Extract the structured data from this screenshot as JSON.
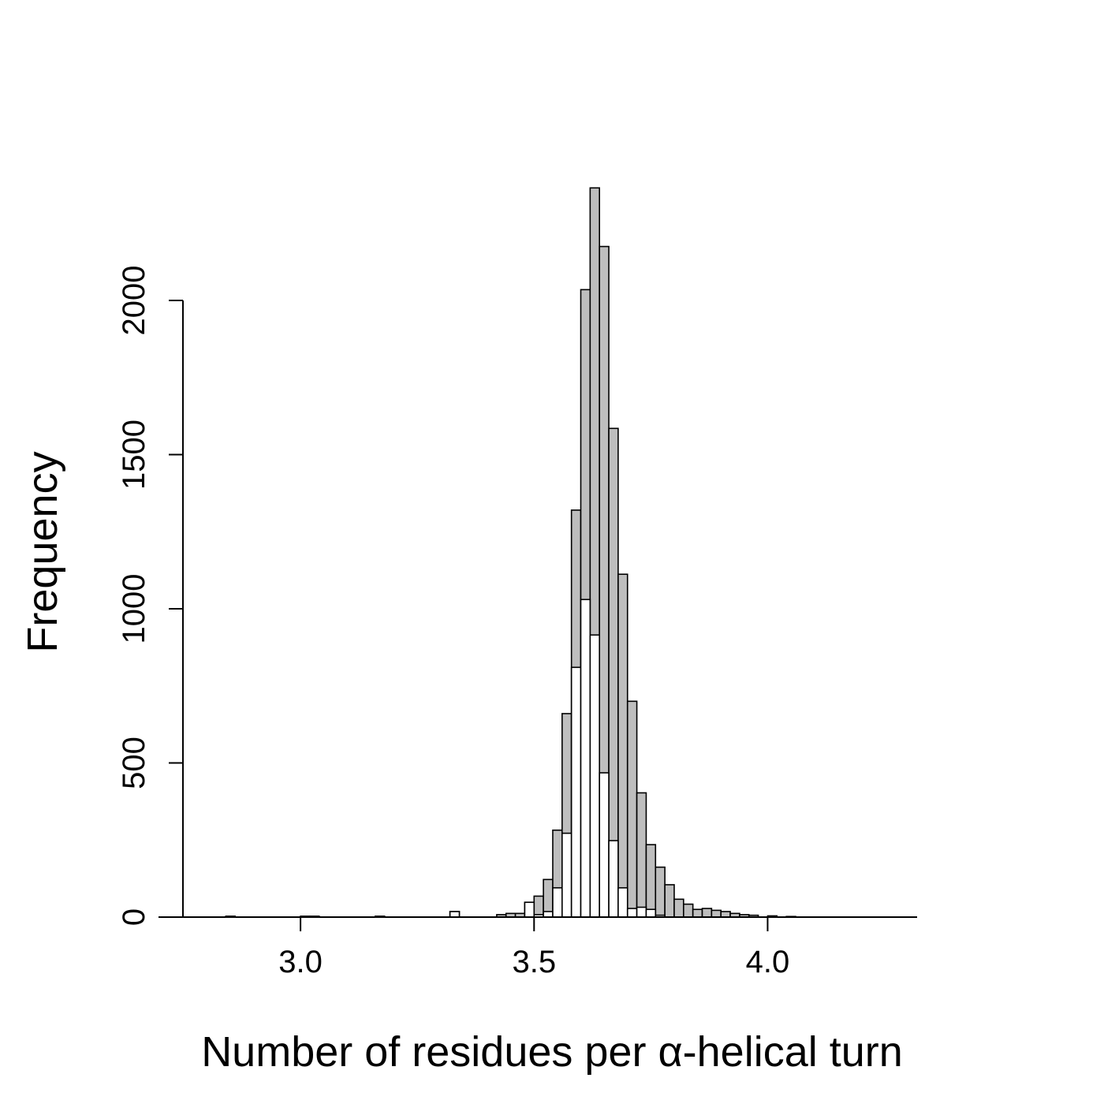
{
  "chart_data": {
    "type": "bar",
    "title": "",
    "xlabel": "Number of residues per α-helical turn",
    "ylabel": "Frequency",
    "xlim": [
      2.75,
      4.32
    ],
    "ylim": [
      0,
      2000
    ],
    "x_ticks": [
      3.0,
      3.5,
      4.0
    ],
    "x_tick_labels": [
      "3.0",
      "3.5",
      "4.0"
    ],
    "y_ticks": [
      0,
      500,
      1000,
      1500,
      2000
    ],
    "y_tick_labels": [
      "0",
      "500",
      "1000",
      "1500",
      "2000"
    ],
    "grid": false,
    "legend": "none",
    "bin_width": 0.02,
    "series": [
      {
        "color": "#bebebe",
        "bins": [
          {
            "x0": 2.84,
            "v": 3
          },
          {
            "x0": 3.0,
            "v": 3
          },
          {
            "x0": 3.02,
            "v": 3
          },
          {
            "x0": 3.16,
            "v": 3
          },
          {
            "x0": 3.32,
            "v": 18
          },
          {
            "x0": 3.42,
            "v": 8
          },
          {
            "x0": 3.44,
            "v": 12
          },
          {
            "x0": 3.46,
            "v": 12
          },
          {
            "x0": 3.48,
            "v": 48
          },
          {
            "x0": 3.5,
            "v": 68
          },
          {
            "x0": 3.52,
            "v": 122
          },
          {
            "x0": 3.54,
            "v": 282
          },
          {
            "x0": 3.56,
            "v": 660
          },
          {
            "x0": 3.58,
            "v": 1320
          },
          {
            "x0": 3.6,
            "v": 2035
          },
          {
            "x0": 3.62,
            "v": 2365
          },
          {
            "x0": 3.64,
            "v": 2175
          },
          {
            "x0": 3.66,
            "v": 1585
          },
          {
            "x0": 3.68,
            "v": 1112
          },
          {
            "x0": 3.7,
            "v": 700
          },
          {
            "x0": 3.72,
            "v": 403
          },
          {
            "x0": 3.74,
            "v": 235
          },
          {
            "x0": 3.76,
            "v": 162
          },
          {
            "x0": 3.78,
            "v": 105
          },
          {
            "x0": 3.8,
            "v": 58
          },
          {
            "x0": 3.82,
            "v": 42
          },
          {
            "x0": 3.84,
            "v": 25
          },
          {
            "x0": 3.86,
            "v": 28
          },
          {
            "x0": 3.88,
            "v": 22
          },
          {
            "x0": 3.9,
            "v": 18
          },
          {
            "x0": 3.92,
            "v": 12
          },
          {
            "x0": 3.94,
            "v": 8
          },
          {
            "x0": 3.96,
            "v": 6
          },
          {
            "x0": 4.0,
            "v": 4
          },
          {
            "x0": 4.04,
            "v": 2
          }
        ]
      },
      {
        "color": "#ffffff",
        "bins": [
          {
            "x0": 3.32,
            "v": 18
          },
          {
            "x0": 3.48,
            "v": 48
          },
          {
            "x0": 3.5,
            "v": 8
          },
          {
            "x0": 3.52,
            "v": 18
          },
          {
            "x0": 3.54,
            "v": 95
          },
          {
            "x0": 3.56,
            "v": 272
          },
          {
            "x0": 3.58,
            "v": 810
          },
          {
            "x0": 3.6,
            "v": 1030
          },
          {
            "x0": 3.62,
            "v": 915
          },
          {
            "x0": 3.64,
            "v": 468
          },
          {
            "x0": 3.66,
            "v": 248
          },
          {
            "x0": 3.68,
            "v": 95
          },
          {
            "x0": 3.7,
            "v": 28
          },
          {
            "x0": 3.72,
            "v": 32
          },
          {
            "x0": 3.74,
            "v": 25
          },
          {
            "x0": 3.76,
            "v": 6
          }
        ]
      }
    ]
  }
}
